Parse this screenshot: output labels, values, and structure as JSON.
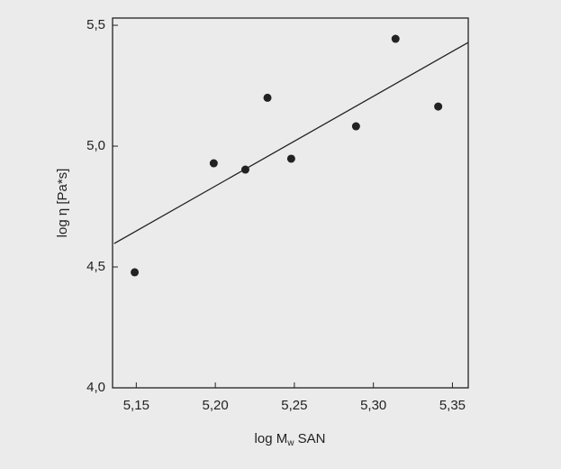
{
  "chart_data": {
    "type": "scatter",
    "xlabel": [
      "log M",
      "w",
      " SAN"
    ],
    "ylabel": "log η [Pa*s]",
    "xlim": [
      5.135,
      5.36
    ],
    "ylim": [
      4.0,
      5.53
    ],
    "xticks": [
      {
        "value": 5.15,
        "label": "5,15"
      },
      {
        "value": 5.2,
        "label": "5,20"
      },
      {
        "value": 5.25,
        "label": "5,25"
      },
      {
        "value": 5.3,
        "label": "5,30"
      },
      {
        "value": 5.35,
        "label": "5,35"
      }
    ],
    "yticks": [
      {
        "value": 4.0,
        "label": "4,0"
      },
      {
        "value": 4.5,
        "label": "4,5"
      },
      {
        "value": 5.0,
        "label": "5,0"
      },
      {
        "value": 5.5,
        "label": "5,5"
      }
    ],
    "series": [
      {
        "color": "#222222",
        "x": [
          5.149,
          5.199,
          5.219,
          5.233,
          5.248,
          5.289,
          5.314,
          5.341
        ],
        "values": [
          4.478,
          4.929,
          4.903,
          5.2,
          4.948,
          5.082,
          5.444,
          5.164
        ]
      },
      {
        "type": "line",
        "color": "#222222",
        "x": [
          5.136,
          5.36
        ],
        "values": [
          4.597,
          5.429
        ]
      }
    ]
  }
}
